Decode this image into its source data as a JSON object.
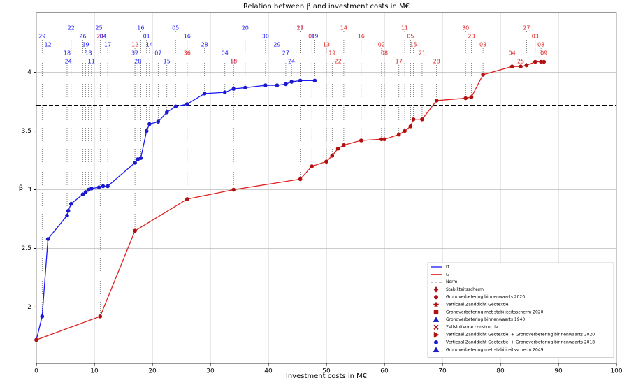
{
  "chart_data": {
    "type": "line",
    "title": "Relation between β and investment costs in M€",
    "x_label": "Investment costs in M€",
    "y_label": "β",
    "xlim": [
      0,
      100
    ],
    "xticks": [
      0,
      10,
      20,
      30,
      40,
      50,
      60,
      70,
      80,
      90,
      100
    ],
    "ylim": [
      1.52,
      4.51
    ],
    "yticks": [
      2.0,
      2.5,
      3.0,
      3.5,
      4.0
    ],
    "grid": true,
    "legend": "lower right",
    "series": [
      {
        "name": "I1",
        "color": "#1a1aff",
        "marker_color": "#1a1acc",
        "x": [
          0,
          1,
          2,
          5.3,
          5.5,
          6,
          8,
          8.5,
          9,
          9.5,
          10.8,
          11.5,
          12.3,
          17,
          17.5,
          18,
          19,
          19.5,
          21,
          22.5,
          24,
          26,
          29,
          32.5,
          34,
          36,
          39.5,
          41.5,
          43,
          44,
          45.5,
          48
        ],
        "values": [
          1.72,
          1.92,
          2.58,
          2.78,
          2.82,
          2.88,
          2.96,
          2.98,
          3.0,
          3.01,
          3.02,
          3.03,
          3.03,
          3.23,
          3.26,
          3.27,
          3.5,
          3.56,
          3.58,
          3.66,
          3.71,
          3.73,
          3.82,
          3.83,
          3.86,
          3.87,
          3.89,
          3.89,
          3.9,
          3.92,
          3.93,
          3.93
        ],
        "point_labels": [
          null,
          "29",
          "12",
          "18",
          "24",
          "22",
          "26",
          "19",
          "13",
          "11",
          "25",
          "04",
          "17",
          "32",
          "28",
          "16",
          "01",
          "14",
          "07",
          "15",
          "05",
          "16",
          "28",
          "04",
          "15",
          "20",
          "30",
          "29",
          "27",
          "24",
          "25",
          "19"
        ]
      },
      {
        "name": "I2",
        "color": "#e02020",
        "marker_color": "#b01010",
        "x": [
          0,
          11,
          17,
          26,
          34,
          45.5,
          47.5,
          50,
          51,
          52,
          53,
          56,
          59.5,
          60,
          62.5,
          63.5,
          64.5,
          65,
          66.5,
          69,
          74,
          75,
          77,
          82,
          83.5,
          84.5,
          86,
          87,
          87.5
        ],
        "values": [
          1.72,
          1.92,
          2.65,
          2.92,
          3.0,
          3.09,
          3.2,
          3.24,
          3.29,
          3.35,
          3.38,
          3.42,
          3.43,
          3.43,
          3.47,
          3.5,
          3.54,
          3.6,
          3.6,
          3.76,
          3.78,
          3.79,
          3.98,
          4.05,
          4.05,
          4.06,
          4.09,
          4.09,
          4.09
        ],
        "point_labels": [
          null,
          "23",
          "12",
          "36",
          "18",
          "24",
          "01",
          "13",
          "19",
          "22",
          "14",
          "16",
          "02",
          "08",
          "17",
          "11",
          "05",
          "15",
          "21",
          "28",
          "30",
          "23",
          "03",
          "04",
          "25",
          "27",
          "03",
          "08",
          "09"
        ]
      }
    ],
    "hlines": [
      {
        "name": "Norm",
        "value": 3.72,
        "color": "#000000"
      }
    ],
    "marker_legend": [
      {
        "label": "Stabiliteitsscherm",
        "shape": "diamond",
        "color": "#b01010"
      },
      {
        "label": "Grondverbetering binnenwaarts 2020",
        "shape": "circle",
        "color": "#b01010"
      },
      {
        "label": "Verticaal Zanddicht Geotextiel",
        "shape": "star",
        "color": "#b01010"
      },
      {
        "label": "Grondverbetering met stabiliteitsscherm 2020",
        "shape": "square",
        "color": "#b01010"
      },
      {
        "label": "Grondverbetering binnenwaarts 1940",
        "shape": "triangle",
        "color": "#1a1acc"
      },
      {
        "label": "Zelfsluitende constructie",
        "shape": "cross",
        "color": "#b01010"
      },
      {
        "label": "Verticaal Zanddicht Geotextiel + Grondverbetering binnenwaarts 2020",
        "shape": "tri-right",
        "color": "#b01010"
      },
      {
        "label": "Verticaal Zanddicht Geotextiel + Grondverbetering binnenwaarts 2018",
        "shape": "circle",
        "color": "#1a1acc"
      },
      {
        "label": "Grondverbetering met stabiliteitsscherm 2049",
        "shape": "triangle",
        "color": "#1a1acc"
      }
    ]
  }
}
